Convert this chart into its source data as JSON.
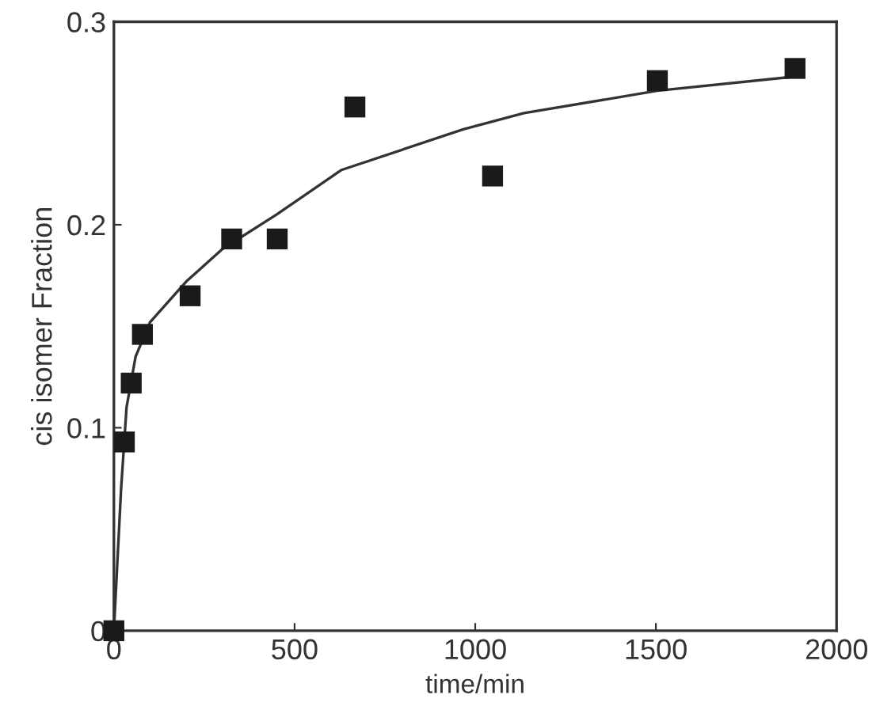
{
  "chart_data": {
    "type": "scatter",
    "xlabel": "time/min",
    "ylabel": "cis isomer Fraction",
    "xlim": [
      0,
      2000
    ],
    "ylim": [
      0,
      0.3
    ],
    "xticks": [
      0,
      500,
      1000,
      1500,
      2000
    ],
    "yticks": [
      0,
      0.1,
      0.2,
      0.3
    ],
    "grid": false,
    "legend": false,
    "series": [
      {
        "marker": "square",
        "color": "#1a1a1a",
        "x": [
          0,
          29,
          48,
          79,
          211,
          326,
          452,
          667,
          1048,
          1504,
          1885
        ],
        "values": [
          0,
          0.093,
          0.122,
          0.146,
          0.165,
          0.193,
          0.193,
          0.258,
          0.224,
          0.271,
          0.277
        ]
      },
      {
        "type": "line",
        "marker": "none",
        "line_style": "solid",
        "color": "#333333",
        "x": [
          0,
          20,
          35,
          60,
          100,
          200,
          300,
          450,
          630,
          967,
          1135,
          1504,
          1885
        ],
        "values": [
          0,
          0.07,
          0.11,
          0.135,
          0.152,
          0.172,
          0.188,
          0.205,
          0.227,
          0.247,
          0.255,
          0.266,
          0.273
        ]
      }
    ]
  }
}
